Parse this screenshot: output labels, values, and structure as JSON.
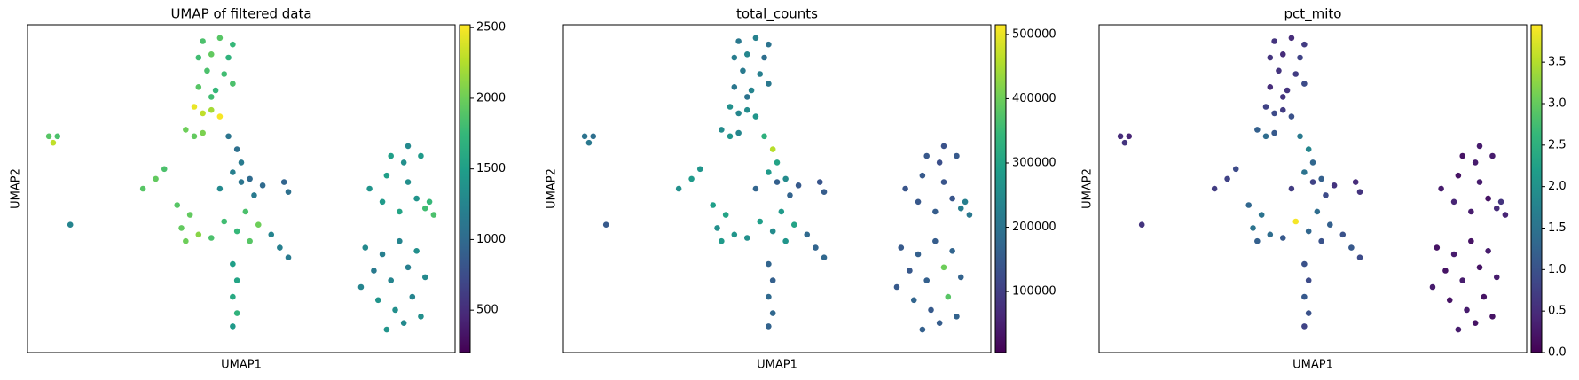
{
  "chart_data": [
    {
      "type": "scatter",
      "title": "UMAP of filtered data",
      "xlabel": "UMAP1",
      "ylabel": "UMAP2",
      "colormap": "viridis",
      "xlim": [
        0,
        10
      ],
      "ylim": [
        0,
        10
      ],
      "x": [
        4.1,
        4.5,
        4.8,
        4.0,
        4.3,
        4.7,
        4.2,
        4.6,
        4.0,
        4.4,
        4.8,
        4.3,
        3.9,
        4.1,
        4.5,
        4.3,
        0.5,
        0.7,
        0.6,
        3.7,
        3.9,
        4.1,
        4.7,
        4.9,
        5.0,
        4.8,
        5.2,
        4.5,
        5.0,
        5.5,
        6.0,
        6.1,
        5.3,
        2.7,
        3.0,
        3.2,
        3.5,
        3.8,
        4.0,
        3.7,
        4.3,
        4.6,
        4.9,
        5.2,
        5.4,
        5.1,
        3.6,
        5.7,
        5.9,
        6.1,
        1.0,
        4.8,
        4.9,
        4.8,
        4.9,
        4.8,
        8.0,
        8.4,
        8.8,
        8.3,
        8.7,
        9.1,
        8.9,
        9.2,
        8.5,
        8.9,
        7.9,
        8.3,
        8.7,
        9.1,
        8.1,
        8.5,
        8.9,
        9.3,
        8.2,
        8.6,
        9.0,
        8.4,
        8.8,
        9.2,
        7.8,
        9.3,
        9.5,
        9.4
      ],
      "y": [
        9.5,
        9.6,
        9.4,
        9.0,
        9.1,
        9.0,
        8.6,
        8.5,
        8.1,
        8.0,
        8.2,
        7.8,
        7.5,
        7.3,
        7.2,
        7.4,
        6.6,
        6.6,
        6.4,
        6.8,
        6.6,
        6.7,
        6.6,
        6.2,
        5.8,
        5.5,
        5.3,
        5.0,
        5.2,
        5.1,
        5.2,
        4.9,
        4.8,
        5.0,
        5.3,
        5.6,
        4.5,
        4.2,
        3.6,
        3.4,
        3.5,
        4.0,
        3.7,
        3.4,
        3.9,
        4.3,
        3.8,
        3.6,
        3.2,
        2.9,
        3.9,
        2.7,
        2.2,
        1.7,
        1.2,
        0.8,
        5.0,
        5.4,
        5.8,
        4.6,
        4.3,
        4.7,
        6.3,
        6.0,
        6.0,
        5.2,
        3.2,
        3.0,
        3.4,
        3.1,
        2.5,
        2.2,
        2.6,
        2.3,
        1.6,
        1.3,
        1.7,
        0.7,
        0.9,
        1.1,
        2.0,
        4.4,
        4.2,
        4.6
      ],
      "values": [
        1850,
        1900,
        1750,
        1800,
        1950,
        1700,
        1850,
        1800,
        1900,
        1750,
        1850,
        1800,
        2450,
        2300,
        2500,
        2200,
        1900,
        1850,
        2300,
        2000,
        1950,
        2050,
        1100,
        1050,
        1150,
        1200,
        1000,
        1300,
        1100,
        1000,
        950,
        1050,
        1150,
        1900,
        1950,
        1850,
        1900,
        1950,
        2100,
        2000,
        1850,
        1800,
        1750,
        1900,
        2000,
        1850,
        1950,
        1250,
        1200,
        1150,
        1250,
        1500,
        1550,
        1600,
        1700,
        1450,
        1400,
        1500,
        1350,
        1450,
        1550,
        1400,
        1300,
        1450,
        1500,
        1350,
        1300,
        1200,
        1250,
        1350,
        1150,
        1250,
        1200,
        1300,
        1400,
        1350,
        1250,
        1400,
        1300,
        1350,
        1250,
        1800,
        1850,
        1750
      ],
      "clim": [
        200,
        2520
      ],
      "cticks": [
        500,
        1000,
        1500,
        2000,
        2500
      ]
    },
    {
      "type": "scatter",
      "title": "total_counts",
      "xlabel": "UMAP1",
      "ylabel": "UMAP2",
      "colormap": "viridis",
      "xlim": [
        0,
        10
      ],
      "ylim": [
        0,
        10
      ],
      "x": [
        4.1,
        4.5,
        4.8,
        4.0,
        4.3,
        4.7,
        4.2,
        4.6,
        4.0,
        4.4,
        4.8,
        4.3,
        3.9,
        4.1,
        4.5,
        4.3,
        0.5,
        0.7,
        0.6,
        3.7,
        3.9,
        4.1,
        4.7,
        4.9,
        5.0,
        4.8,
        5.2,
        4.5,
        5.0,
        5.5,
        6.0,
        6.1,
        5.3,
        2.7,
        3.0,
        3.2,
        3.5,
        3.8,
        4.0,
        3.7,
        4.3,
        4.6,
        4.9,
        5.2,
        5.4,
        5.1,
        3.6,
        5.7,
        5.9,
        6.1,
        1.0,
        4.8,
        4.9,
        4.8,
        4.9,
        4.8,
        8.0,
        8.4,
        8.8,
        8.3,
        8.7,
        9.1,
        8.9,
        9.2,
        8.5,
        8.9,
        7.9,
        8.3,
        8.7,
        9.1,
        8.1,
        8.5,
        8.9,
        9.3,
        8.2,
        8.6,
        9.0,
        8.4,
        8.8,
        9.2,
        7.8,
        9.3,
        9.5,
        9.4
      ],
      "y": [
        9.5,
        9.6,
        9.4,
        9.0,
        9.1,
        9.0,
        8.6,
        8.5,
        8.1,
        8.0,
        8.2,
        7.8,
        7.5,
        7.3,
        7.2,
        7.4,
        6.6,
        6.6,
        6.4,
        6.8,
        6.6,
        6.7,
        6.6,
        6.2,
        5.8,
        5.5,
        5.3,
        5.0,
        5.2,
        5.1,
        5.2,
        4.9,
        4.8,
        5.0,
        5.3,
        5.6,
        4.5,
        4.2,
        3.6,
        3.4,
        3.5,
        4.0,
        3.7,
        3.4,
        3.9,
        4.3,
        3.8,
        3.6,
        3.2,
        2.9,
        3.9,
        2.7,
        2.2,
        1.7,
        1.2,
        0.8,
        5.0,
        5.4,
        5.8,
        4.6,
        4.3,
        4.7,
        6.3,
        6.0,
        6.0,
        5.2,
        3.2,
        3.0,
        3.4,
        3.1,
        2.5,
        2.2,
        2.6,
        2.3,
        1.6,
        1.3,
        1.7,
        0.7,
        0.9,
        1.1,
        2.0,
        4.4,
        4.2,
        4.6
      ],
      "values": [
        210000,
        230000,
        200000,
        220000,
        240000,
        190000,
        215000,
        225000,
        205000,
        235000,
        210000,
        200000,
        260000,
        240000,
        270000,
        250000,
        200000,
        190000,
        210000,
        250000,
        270000,
        240000,
        330000,
        460000,
        300000,
        280000,
        250000,
        170000,
        160000,
        150000,
        140000,
        155000,
        165000,
        260000,
        280000,
        270000,
        290000,
        300000,
        270000,
        280000,
        260000,
        290000,
        250000,
        270000,
        300000,
        280000,
        260000,
        180000,
        170000,
        175000,
        150000,
        170000,
        160000,
        180000,
        175000,
        165000,
        140000,
        150000,
        130000,
        145000,
        155000,
        140000,
        135000,
        150000,
        145000,
        140000,
        150000,
        160000,
        155000,
        170000,
        145000,
        160000,
        400000,
        165000,
        170000,
        150000,
        380000,
        160000,
        155000,
        165000,
        150000,
        220000,
        210000,
        225000
      ],
      "clim": [
        5000,
        515000
      ],
      "cticks": [
        100000,
        200000,
        300000,
        400000,
        500000
      ]
    },
    {
      "type": "scatter",
      "title": "pct_mito",
      "xlabel": "UMAP1",
      "ylabel": "UMAP2",
      "colormap": "viridis",
      "xlim": [
        0,
        10
      ],
      "ylim": [
        0,
        10
      ],
      "x": [
        4.1,
        4.5,
        4.8,
        4.0,
        4.3,
        4.7,
        4.2,
        4.6,
        4.0,
        4.4,
        4.8,
        4.3,
        3.9,
        4.1,
        4.5,
        4.3,
        0.5,
        0.7,
        0.6,
        3.7,
        3.9,
        4.1,
        4.7,
        4.9,
        5.0,
        4.8,
        5.2,
        4.5,
        5.0,
        5.5,
        6.0,
        6.1,
        5.3,
        2.7,
        3.0,
        3.2,
        3.5,
        3.8,
        4.0,
        3.7,
        4.3,
        4.6,
        4.9,
        5.2,
        5.4,
        5.1,
        3.6,
        5.7,
        5.9,
        6.1,
        1.0,
        4.8,
        4.9,
        4.8,
        4.9,
        4.8,
        8.0,
        8.4,
        8.8,
        8.3,
        8.7,
        9.1,
        8.9,
        9.2,
        8.5,
        8.9,
        7.9,
        8.3,
        8.7,
        9.1,
        8.1,
        8.5,
        8.9,
        9.3,
        8.2,
        8.6,
        9.0,
        8.4,
        8.8,
        9.2,
        7.8,
        9.3,
        9.5,
        9.4
      ],
      "y": [
        9.5,
        9.6,
        9.4,
        9.0,
        9.1,
        9.0,
        8.6,
        8.5,
        8.1,
        8.0,
        8.2,
        7.8,
        7.5,
        7.3,
        7.2,
        7.4,
        6.6,
        6.6,
        6.4,
        6.8,
        6.6,
        6.7,
        6.6,
        6.2,
        5.8,
        5.5,
        5.3,
        5.0,
        5.2,
        5.1,
        5.2,
        4.9,
        4.8,
        5.0,
        5.3,
        5.6,
        4.5,
        4.2,
        3.6,
        3.4,
        3.5,
        4.0,
        3.7,
        3.4,
        3.9,
        4.3,
        3.8,
        3.6,
        3.2,
        2.9,
        3.9,
        2.7,
        2.2,
        1.7,
        1.2,
        0.8,
        5.0,
        5.4,
        5.8,
        4.6,
        4.3,
        4.7,
        6.3,
        6.0,
        6.0,
        5.2,
        3.2,
        3.0,
        3.4,
        3.1,
        2.5,
        2.2,
        2.6,
        2.3,
        1.6,
        1.3,
        1.7,
        0.7,
        0.9,
        1.1,
        2.0,
        4.4,
        4.2,
        4.6
      ],
      "values": [
        0.6,
        0.5,
        0.7,
        0.6,
        0.5,
        0.8,
        0.6,
        0.7,
        0.5,
        0.6,
        0.9,
        0.6,
        0.8,
        0.9,
        1.0,
        0.7,
        0.5,
        0.4,
        0.6,
        1.2,
        1.4,
        1.1,
        1.6,
        1.8,
        1.3,
        1.5,
        1.2,
        0.7,
        0.8,
        0.6,
        0.5,
        0.6,
        0.9,
        0.7,
        0.8,
        0.9,
        1.3,
        1.5,
        1.4,
        1.2,
        1.1,
        3.9,
        1.3,
        1.0,
        1.2,
        1.4,
        1.5,
        1.0,
        1.1,
        0.9,
        0.6,
        1.0,
        0.9,
        1.1,
        1.0,
        0.8,
        0.3,
        0.2,
        0.3,
        0.4,
        0.3,
        0.2,
        0.3,
        0.3,
        0.2,
        0.3,
        0.2,
        0.3,
        0.2,
        0.3,
        0.2,
        0.3,
        0.2,
        0.3,
        0.2,
        0.3,
        0.2,
        0.3,
        0.2,
        0.2,
        0.3,
        0.5,
        0.4,
        0.6
      ],
      "clim": [
        0,
        3.95
      ],
      "cticks": [
        {
          "value": 0,
          "label": "0.0"
        },
        {
          "value": 0.5,
          "label": "0.5"
        },
        {
          "value": 1,
          "label": "1.0"
        },
        {
          "value": 1.5,
          "label": "1.5"
        },
        {
          "value": 2,
          "label": "2.0"
        },
        {
          "value": 2.5,
          "label": "2.5"
        },
        {
          "value": 3,
          "label": "3.0"
        },
        {
          "value": 3.5,
          "label": "3.5"
        }
      ]
    }
  ]
}
